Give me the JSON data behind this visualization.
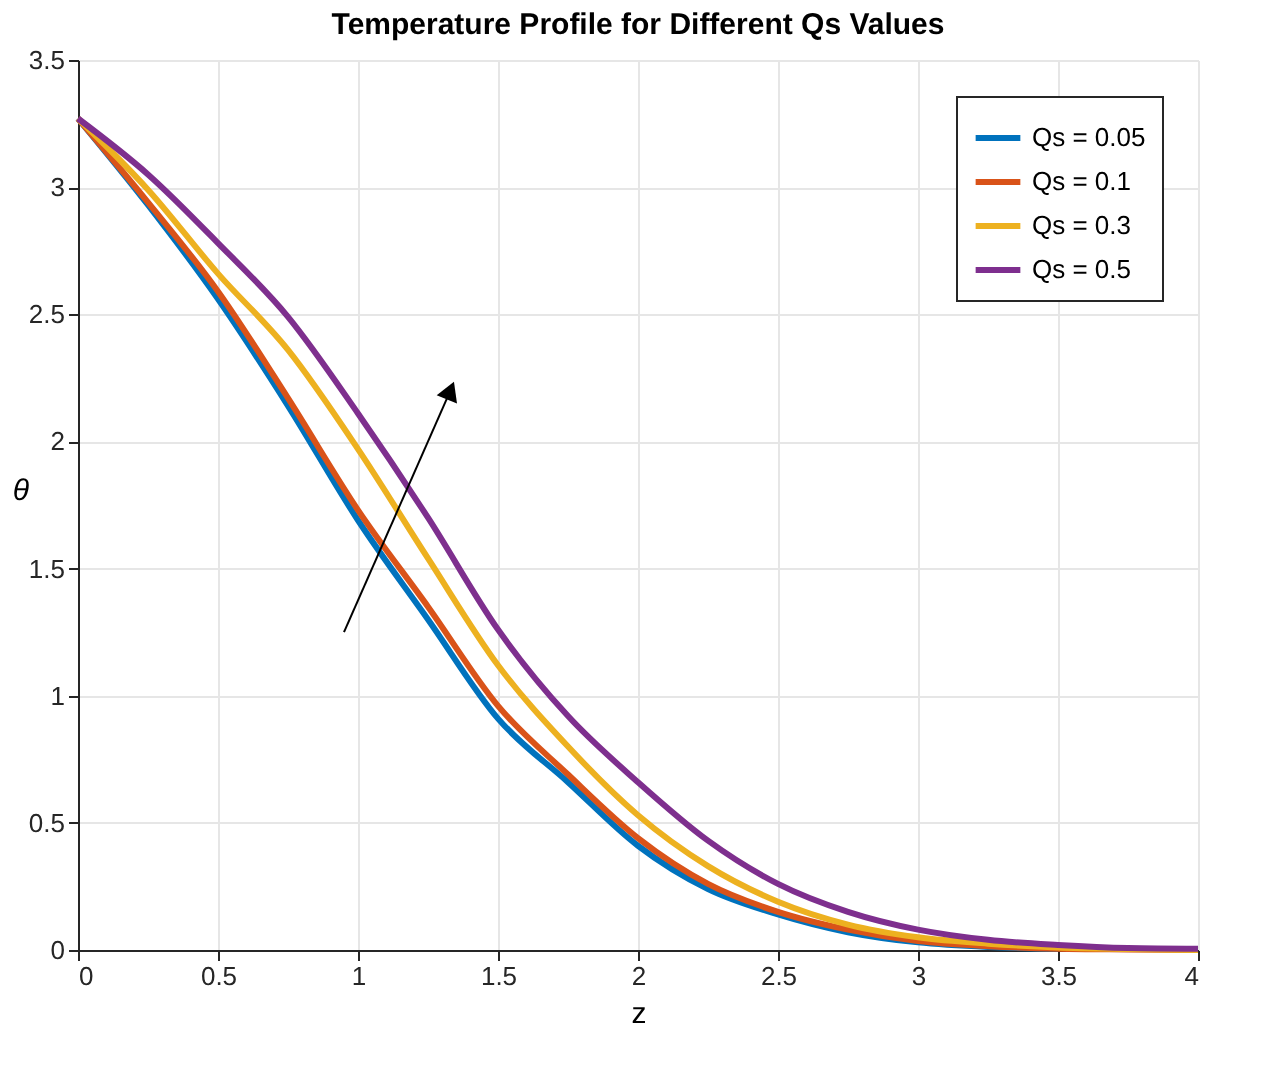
{
  "chart_data": {
    "type": "line",
    "title": "Temperature Profile for Different Qs Values",
    "xlabel": "z",
    "ylabel": "θ",
    "x": [
      0,
      0.25,
      0.5,
      0.75,
      1,
      1.25,
      1.5,
      1.75,
      2,
      2.25,
      2.5,
      2.75,
      3,
      3.25,
      3.5,
      3.75,
      4
    ],
    "series": [
      {
        "name": "Qs = 0.05",
        "color": "#0072bd",
        "values": [
          3.27,
          2.93,
          2.56,
          2.14,
          1.69,
          1.3,
          0.91,
          0.66,
          0.41,
          0.24,
          0.14,
          0.07,
          0.03,
          0.012,
          0.005,
          null,
          null
        ]
      },
      {
        "name": "Qs = 0.1",
        "color": "#d95319",
        "values": [
          3.27,
          2.94,
          2.59,
          2.17,
          1.73,
          1.35,
          0.96,
          0.69,
          0.44,
          0.26,
          0.15,
          0.08,
          0.035,
          0.015,
          0.005,
          0.002,
          0
        ]
      },
      {
        "name": "Qs = 0.3",
        "color": "#edb120",
        "values": [
          3.27,
          2.99,
          2.66,
          2.36,
          1.97,
          1.54,
          1.12,
          0.8,
          0.53,
          0.33,
          0.19,
          0.1,
          0.05,
          0.025,
          0.01,
          0.004,
          0
        ]
      },
      {
        "name": "Qs = 0.5",
        "color": "#7e2f8e",
        "values": [
          3.27,
          3.05,
          2.78,
          2.49,
          2.11,
          1.7,
          1.26,
          0.92,
          0.66,
          0.43,
          0.26,
          0.15,
          0.08,
          0.04,
          0.02,
          0.008,
          0.005
        ]
      }
    ],
    "xlim": [
      0,
      4
    ],
    "xticks": [
      0,
      0.5,
      1,
      1.5,
      2,
      2.5,
      3,
      3.5,
      4
    ],
    "ylim": [
      0,
      3.5
    ],
    "yticks": [
      0,
      0.5,
      1,
      1.5,
      2,
      2.5,
      3,
      3.5
    ],
    "grid": true,
    "legend": "top right",
    "marker": "none",
    "line_style": "solid"
  }
}
